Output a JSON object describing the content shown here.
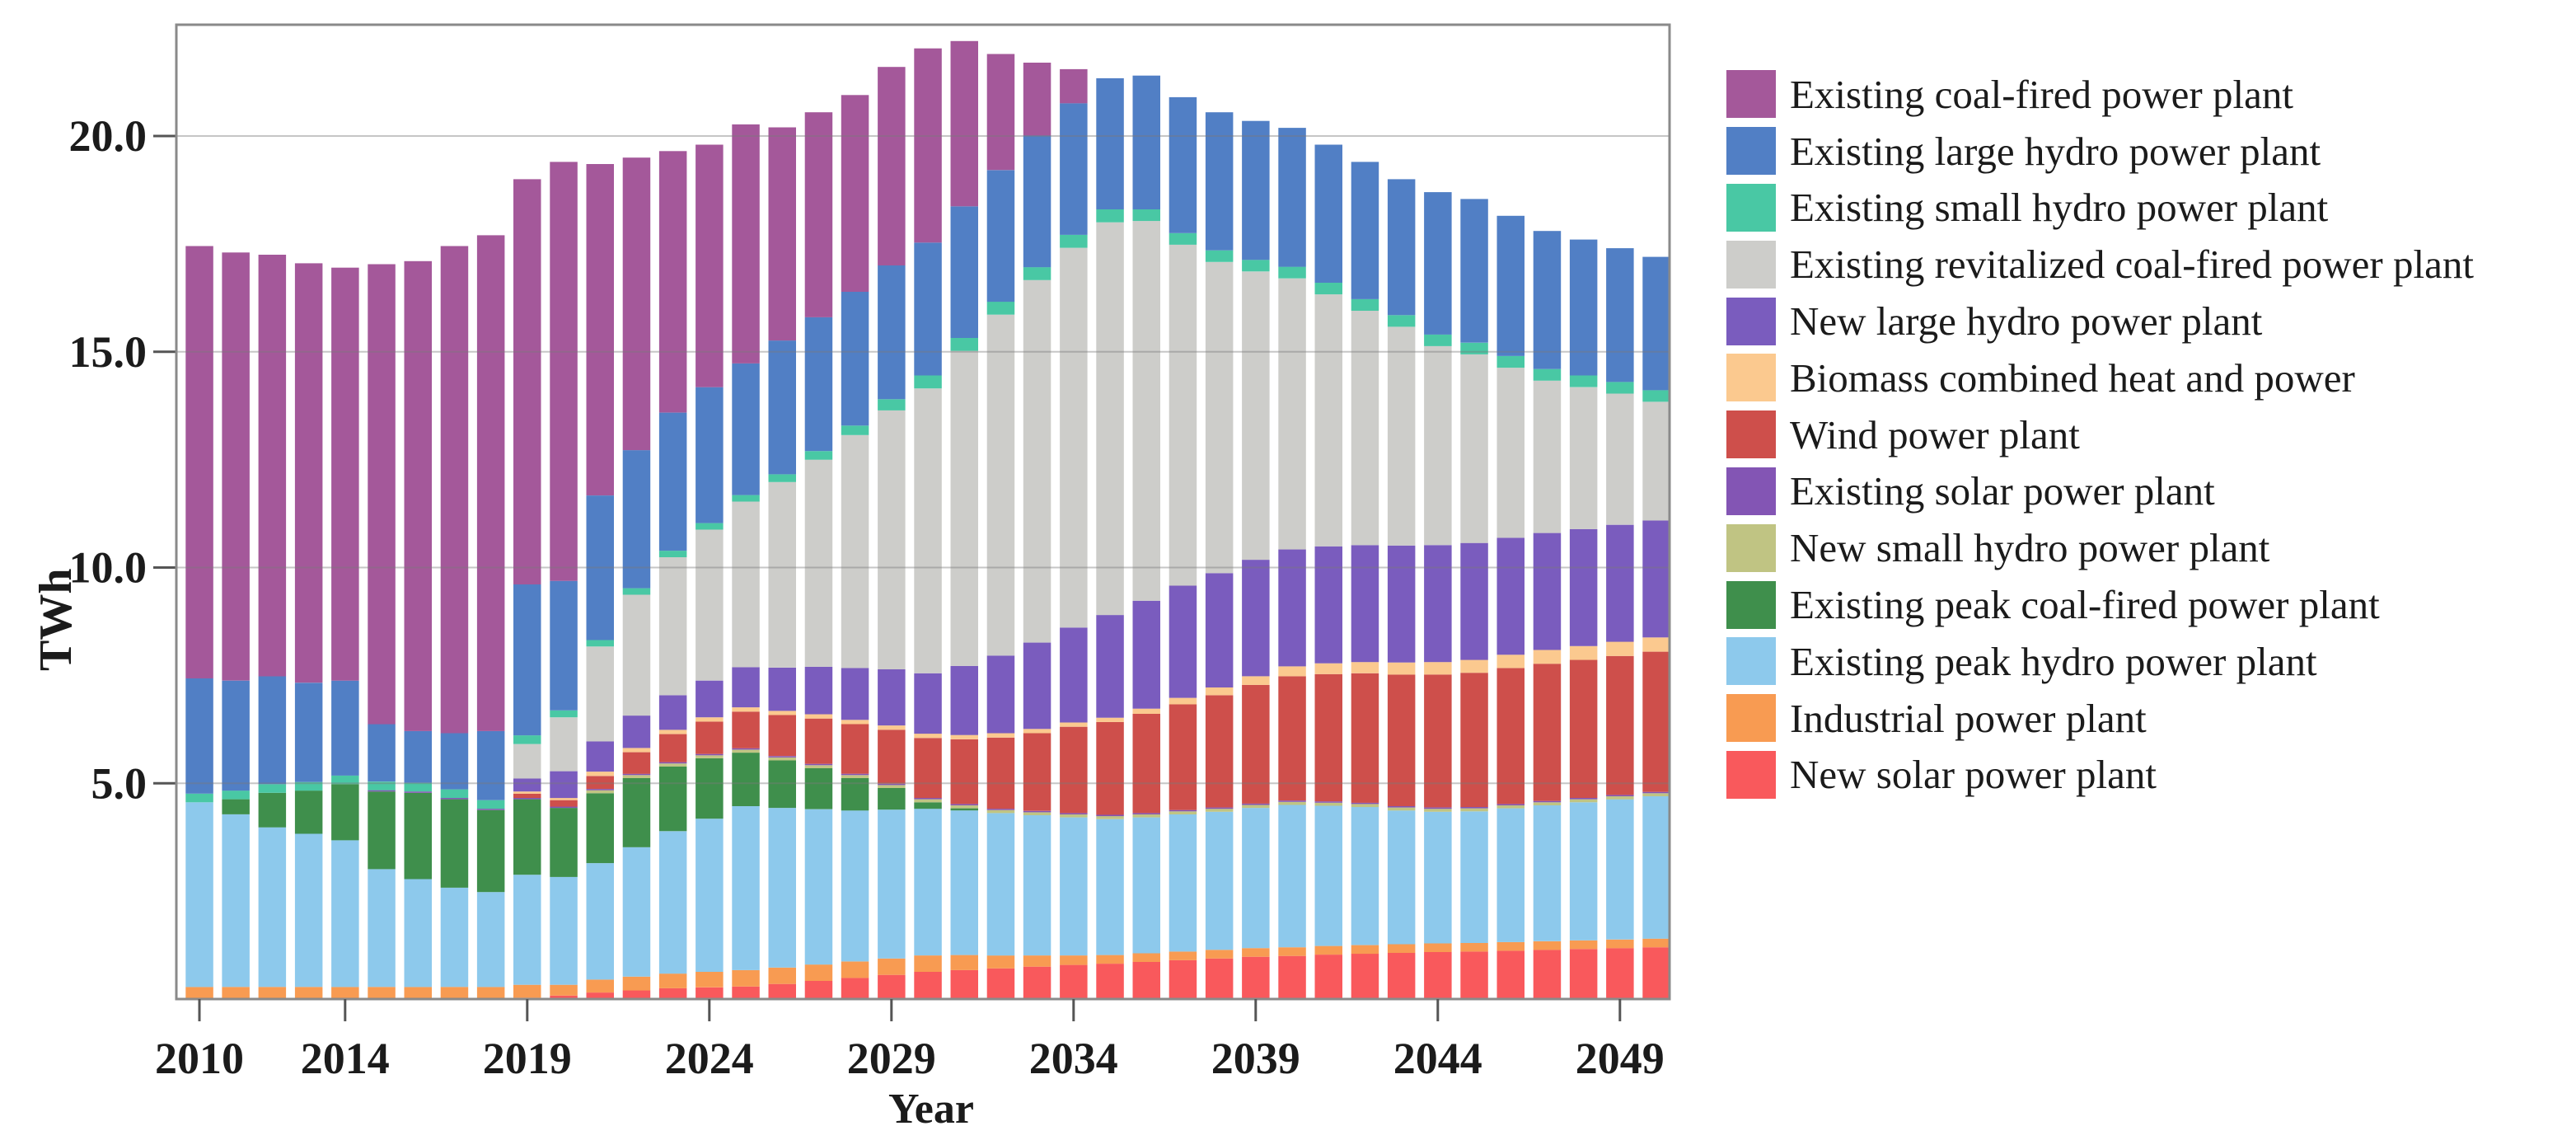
{
  "figure": {
    "background": "#ffffff",
    "frame_color": "#8a8a8a",
    "grid_color": "#7a7a7a",
    "text_color": "#1b1b1b"
  },
  "chart_data": {
    "type": "bar",
    "stacked": true,
    "title": "",
    "xlabel": "Year",
    "ylabel": "TWh",
    "ylim": [
      0,
      22.5
    ],
    "grid": true,
    "legend_position": "right",
    "legend_order": "top-to-bottom is reverse of series stack order",
    "y_ticks": [
      5.0,
      10.0,
      15.0,
      20.0
    ],
    "y_tick_labels": [
      "5.0",
      "10.0",
      "15.0",
      "20.0"
    ],
    "x_tick_years": [
      2010,
      2014,
      2019,
      2024,
      2029,
      2034,
      2039,
      2044,
      2049
    ],
    "years": [
      2010,
      2011,
      2012,
      2013,
      2014,
      2015,
      2016,
      2017,
      2018,
      2019,
      2020,
      2021,
      2022,
      2023,
      2024,
      2025,
      2026,
      2027,
      2028,
      2029,
      2030,
      2031,
      2032,
      2033,
      2034,
      2035,
      2036,
      2037,
      2038,
      2039,
      2040,
      2041,
      2042,
      2043,
      2044,
      2045,
      2046,
      2047,
      2048,
      2049,
      2050
    ],
    "series": [
      {
        "name": "New solar power plant",
        "color": "#F9595C",
        "values": [
          0,
          0,
          0,
          0,
          0,
          0,
          0,
          0,
          0,
          0.03,
          0.08,
          0.15,
          0.2,
          0.25,
          0.27,
          0.29,
          0.35,
          0.42,
          0.49,
          0.56,
          0.63,
          0.67,
          0.71,
          0.75,
          0.79,
          0.82,
          0.86,
          0.9,
          0.94,
          0.98,
          1.0,
          1.03,
          1.05,
          1.07,
          1.09,
          1.1,
          1.12,
          1.14,
          1.16,
          1.18,
          1.2
        ]
      },
      {
        "name": "Industrial power plant",
        "color": "#F89B52",
        "values": [
          0.28,
          0.28,
          0.28,
          0.28,
          0.28,
          0.28,
          0.28,
          0.28,
          0.28,
          0.3,
          0.25,
          0.3,
          0.32,
          0.34,
          0.36,
          0.38,
          0.38,
          0.38,
          0.38,
          0.38,
          0.38,
          0.35,
          0.3,
          0.26,
          0.22,
          0.2,
          0.2,
          0.2,
          0.2,
          0.2,
          0.2,
          0.2,
          0.2,
          0.2,
          0.2,
          0.2,
          0.2,
          0.2,
          0.2,
          0.2,
          0.2
        ]
      },
      {
        "name": "Existing peak hydro power plant",
        "color": "#8DC9EC",
        "values": [
          4.28,
          4.0,
          3.7,
          3.55,
          3.4,
          2.73,
          2.5,
          2.3,
          2.2,
          2.55,
          2.5,
          2.7,
          3.0,
          3.3,
          3.55,
          3.8,
          3.7,
          3.6,
          3.5,
          3.45,
          3.4,
          3.35,
          3.3,
          3.25,
          3.2,
          3.15,
          3.15,
          3.18,
          3.2,
          3.25,
          3.3,
          3.25,
          3.2,
          3.1,
          3.05,
          3.05,
          3.1,
          3.15,
          3.2,
          3.25,
          3.3
        ]
      },
      {
        "name": "Existing peak coal-fired power plant",
        "color": "#3F8F4C",
        "values": [
          0,
          0.35,
          0.8,
          1.0,
          1.3,
          1.8,
          2.0,
          2.05,
          1.9,
          1.75,
          1.6,
          1.62,
          1.6,
          1.5,
          1.4,
          1.24,
          1.1,
          0.95,
          0.75,
          0.5,
          0.15,
          0.05,
          0,
          0,
          0,
          0,
          0,
          0,
          0,
          0,
          0,
          0,
          0,
          0,
          0,
          0,
          0,
          0,
          0,
          0,
          0
        ]
      },
      {
        "name": "New small hydro power plant",
        "color": "#C0C483",
        "values": [
          0,
          0,
          0,
          0,
          0,
          0,
          0,
          0,
          0,
          0,
          0,
          0.07,
          0.07,
          0.07,
          0.07,
          0.07,
          0.07,
          0.07,
          0.07,
          0.07,
          0.07,
          0.07,
          0.07,
          0.07,
          0.07,
          0.07,
          0.07,
          0.07,
          0.07,
          0.07,
          0.07,
          0.07,
          0.07,
          0.07,
          0.07,
          0.07,
          0.07,
          0.07,
          0.07,
          0.07,
          0.07
        ]
      },
      {
        "name": "Existing solar power plant",
        "color": "#8355B4",
        "values": [
          0,
          0,
          0,
          0,
          0,
          0.03,
          0.03,
          0.03,
          0.03,
          0.03,
          0.03,
          0.03,
          0.03,
          0.03,
          0.03,
          0.03,
          0.03,
          0.03,
          0.03,
          0.03,
          0.03,
          0.03,
          0.03,
          0.03,
          0.03,
          0.03,
          0.03,
          0.03,
          0.03,
          0.03,
          0.03,
          0.03,
          0.03,
          0.03,
          0.03,
          0.03,
          0.03,
          0.03,
          0.03,
          0.03,
          0.03
        ]
      },
      {
        "name": "Wind power plant",
        "color": "#CE4F4B",
        "values": [
          0,
          0,
          0,
          0,
          0,
          0,
          0,
          0,
          0,
          0.1,
          0.15,
          0.3,
          0.5,
          0.65,
          0.75,
          0.85,
          0.95,
          1.05,
          1.15,
          1.25,
          1.39,
          1.5,
          1.65,
          1.8,
          2.0,
          2.15,
          2.3,
          2.45,
          2.6,
          2.75,
          2.88,
          2.95,
          3.0,
          3.05,
          3.08,
          3.11,
          3.15,
          3.18,
          3.2,
          3.22,
          3.25
        ]
      },
      {
        "name": "Biomass combined heat and power",
        "color": "#FBC98F",
        "values": [
          0,
          0,
          0,
          0,
          0,
          0,
          0,
          0,
          0,
          0.05,
          0.05,
          0.1,
          0.1,
          0.1,
          0.1,
          0.1,
          0.1,
          0.1,
          0.1,
          0.1,
          0.1,
          0.1,
          0.1,
          0.1,
          0.1,
          0.1,
          0.12,
          0.15,
          0.18,
          0.2,
          0.23,
          0.25,
          0.26,
          0.28,
          0.29,
          0.3,
          0.31,
          0.32,
          0.32,
          0.33,
          0.33
        ]
      },
      {
        "name": "New large hydro power plant",
        "color": "#7A5CBE",
        "values": [
          0,
          0,
          0,
          0,
          0,
          0,
          0,
          0,
          0,
          0.3,
          0.62,
          0.7,
          0.75,
          0.8,
          0.85,
          0.93,
          1.0,
          1.1,
          1.2,
          1.3,
          1.4,
          1.6,
          1.8,
          2.0,
          2.2,
          2.38,
          2.5,
          2.6,
          2.65,
          2.7,
          2.71,
          2.71,
          2.71,
          2.71,
          2.71,
          2.71,
          2.71,
          2.71,
          2.71,
          2.71,
          2.71
        ]
      },
      {
        "name": "Existing revitalized coal-fired power plant",
        "color": "#CDCDCA",
        "values": [
          0,
          0,
          0,
          0,
          0,
          0,
          0,
          0,
          0,
          0.8,
          1.25,
          2.2,
          2.8,
          3.2,
          3.5,
          3.84,
          4.3,
          4.8,
          5.4,
          6.0,
          6.6,
          7.3,
          7.9,
          8.4,
          8.8,
          9.1,
          8.8,
          7.9,
          7.21,
          6.68,
          6.28,
          5.84,
          5.43,
          5.07,
          4.61,
          4.37,
          3.94,
          3.53,
          3.29,
          3.04,
          2.75
        ]
      },
      {
        "name": "Existing small hydro power plant",
        "color": "#49C8A4",
        "values": [
          0.2,
          0.2,
          0.2,
          0.2,
          0.2,
          0.2,
          0.2,
          0.2,
          0.2,
          0.2,
          0.16,
          0.15,
          0.15,
          0.15,
          0.15,
          0.15,
          0.18,
          0.2,
          0.22,
          0.26,
          0.3,
          0.3,
          0.3,
          0.3,
          0.3,
          0.3,
          0.27,
          0.27,
          0.27,
          0.27,
          0.27,
          0.27,
          0.27,
          0.27,
          0.27,
          0.27,
          0.27,
          0.27,
          0.27,
          0.27,
          0.27
        ]
      },
      {
        "name": "Existing large hydro power plant",
        "color": "#517FC5",
        "values": [
          2.67,
          2.55,
          2.5,
          2.3,
          2.2,
          1.33,
          1.2,
          1.3,
          1.6,
          3.5,
          3.0,
          3.35,
          3.2,
          3.2,
          3.15,
          3.05,
          3.1,
          3.1,
          3.1,
          3.1,
          3.08,
          3.05,
          3.05,
          3.05,
          3.05,
          3.04,
          3.1,
          3.15,
          3.2,
          3.22,
          3.22,
          3.2,
          3.18,
          3.15,
          3.3,
          3.33,
          3.25,
          3.2,
          3.15,
          3.1,
          3.09
        ]
      },
      {
        "name": "Existing coal-fired power plant",
        "color": "#A4589A",
        "values": [
          10.02,
          9.92,
          9.77,
          9.72,
          9.57,
          10.66,
          10.89,
          11.29,
          11.49,
          9.39,
          9.71,
          7.68,
          6.78,
          6.06,
          5.62,
          5.54,
          4.94,
          4.75,
          4.56,
          4.6,
          4.5,
          3.83,
          2.69,
          1.69,
          0.79,
          0,
          0,
          0,
          0,
          0,
          0,
          0,
          0,
          0,
          0,
          0,
          0,
          0,
          0,
          0,
          0
        ]
      }
    ]
  }
}
